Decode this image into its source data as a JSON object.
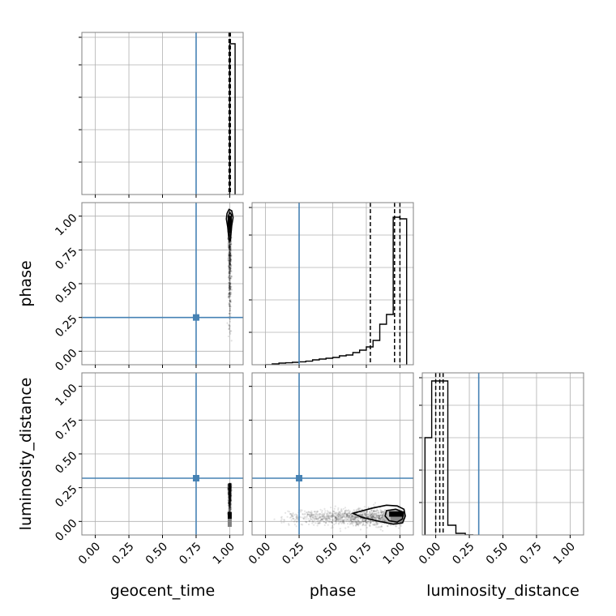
{
  "chart_data": {
    "type": "corner",
    "parameters": [
      "geocent_time",
      "phase",
      "luminosity_distance"
    ],
    "axis_labels": {
      "geocent_time": "geocent_time",
      "phase": "phase",
      "luminosity_distance": "luminosity_distance"
    },
    "tick_labels": [
      "0.00",
      "0.25",
      "0.50",
      "0.75",
      "1.00"
    ],
    "tick_values": [
      0,
      0.25,
      0.5,
      0.75,
      1.0
    ],
    "axis_range": [
      -0.1,
      1.1
    ],
    "grid": true,
    "truths": {
      "geocent_time": 0.75,
      "phase": 0.25,
      "luminosity_distance": 0.32
    },
    "truth_color": "#4682b4",
    "hist_color": "#000000",
    "diagonal": [
      {
        "parameter": "geocent_time",
        "xlim": [
          -0.1,
          1.1
        ],
        "ylim": [
          0,
          1.0
        ],
        "bin_edges": [
          0.98,
          1.0,
          1.02,
          1.04
        ],
        "counts": [
          0,
          0.93,
          0.93
        ],
        "quantiles": [
          0.995,
          1.0,
          1.005
        ]
      },
      {
        "parameter": "phase",
        "xlim": [
          -0.1,
          1.1
        ],
        "ylim": [
          0,
          1.0
        ],
        "bin_edges": [
          0.0,
          0.05,
          0.1,
          0.15,
          0.2,
          0.25,
          0.3,
          0.35,
          0.4,
          0.45,
          0.5,
          0.55,
          0.6,
          0.65,
          0.7,
          0.75,
          0.8,
          0.85,
          0.9,
          0.95,
          1.0,
          1.05
        ],
        "counts": [
          0.0,
          0.005,
          0.01,
          0.012,
          0.015,
          0.018,
          0.022,
          0.03,
          0.035,
          0.04,
          0.045,
          0.055,
          0.06,
          0.075,
          0.09,
          0.11,
          0.15,
          0.25,
          0.31,
          0.91,
          0.9
        ],
        "quantiles": [
          0.78,
          0.96,
          1.0
        ]
      },
      {
        "parameter": "luminosity_distance",
        "xlim": [
          -0.1,
          1.1
        ],
        "ylim": [
          0,
          1.0
        ],
        "bin_edges": [
          -0.08,
          -0.03,
          0.03,
          0.09,
          0.15,
          0.22,
          0.28
        ],
        "counts": [
          0.6,
          0.95,
          0.95,
          0.06,
          0.01,
          0.0
        ],
        "quantiles": [
          0.0,
          0.03,
          0.055
        ]
      }
    ],
    "scatter_panels": [
      {
        "x": "geocent_time",
        "y": "phase",
        "point_cloud": {
          "x_center": 1.0,
          "x_spread": 0.005,
          "y_range": [
            0.0,
            1.0
          ]
        },
        "contours": [
          {
            "level": "outer",
            "points": [
              [
                0.98,
                1.02
              ],
              [
                0.995,
                1.05
              ],
              [
                1.015,
                1.04
              ],
              [
                1.025,
                0.99
              ],
              [
                1.015,
                0.93
              ],
              [
                1.005,
                0.82
              ],
              [
                0.995,
                0.82
              ],
              [
                0.985,
                0.92
              ],
              [
                0.975,
                0.98
              ]
            ]
          },
          {
            "level": "inner",
            "points": [
              [
                0.99,
                1.0
              ],
              [
                1.0,
                1.03
              ],
              [
                1.012,
                1.01
              ],
              [
                1.01,
                0.95
              ],
              [
                1.0,
                0.88
              ],
              [
                0.99,
                0.95
              ]
            ]
          }
        ]
      },
      {
        "x": "geocent_time",
        "y": "luminosity_distance",
        "point_cloud": {
          "x_center": 1.0,
          "x_spread": 0.005,
          "y_range": [
            -0.04,
            0.28
          ]
        },
        "contours": []
      },
      {
        "x": "phase",
        "y": "luminosity_distance",
        "point_cloud": {
          "x_range": [
            0.05,
            1.02
          ],
          "y_center": 0.03,
          "y_spread": 0.03
        },
        "contours": [
          {
            "level": "outer",
            "points": [
              [
                0.65,
                0.06
              ],
              [
                0.8,
                0.1
              ],
              [
                0.9,
                0.12
              ],
              [
                0.98,
                0.115
              ],
              [
                1.03,
                0.09
              ],
              [
                1.04,
                0.04
              ],
              [
                1.02,
                -0.01
              ],
              [
                0.95,
                -0.02
              ],
              [
                0.85,
                0.0
              ],
              [
                0.72,
                0.03
              ]
            ]
          },
          {
            "level": "inner",
            "points": [
              [
                0.9,
                0.08
              ],
              [
                0.97,
                0.09
              ],
              [
                1.02,
                0.07
              ],
              [
                1.02,
                0.02
              ],
              [
                0.98,
                -0.005
              ],
              [
                0.92,
                0.005
              ],
              [
                0.89,
                0.04
              ]
            ]
          }
        ]
      }
    ]
  }
}
